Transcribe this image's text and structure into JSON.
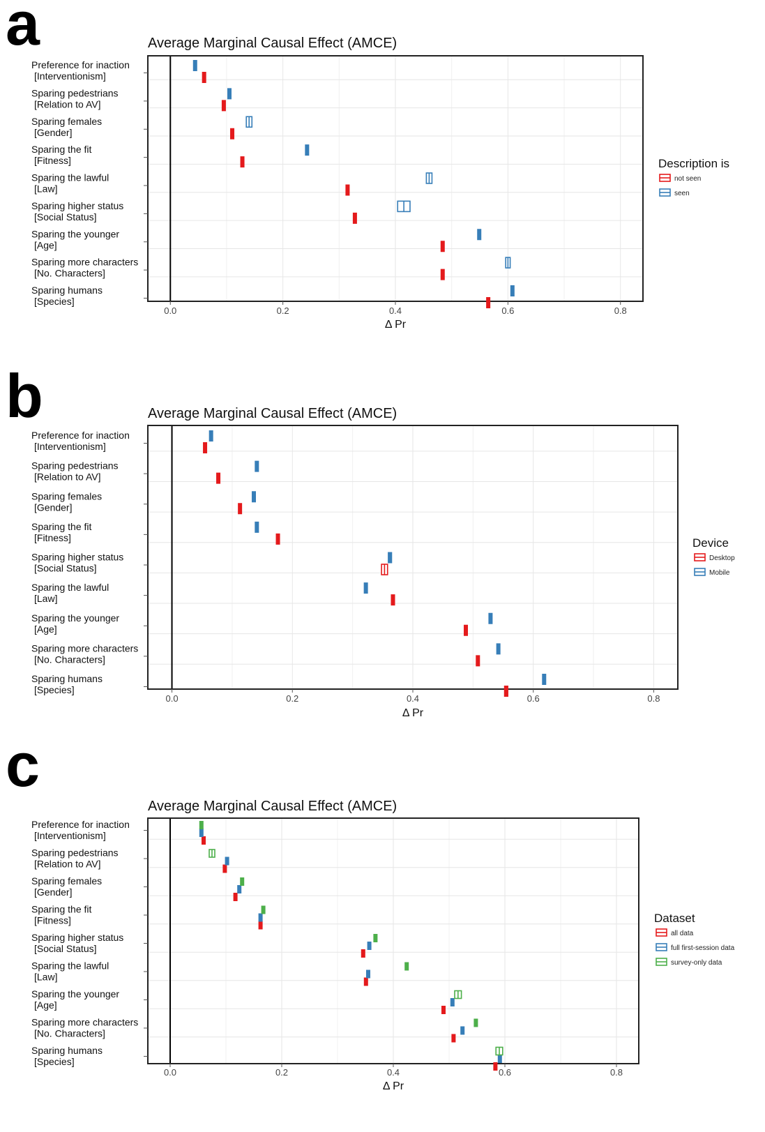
{
  "colors": {
    "red": "#e41a1c",
    "blue": "#377eb8",
    "green": "#4daf4a"
  },
  "row_labels": [
    [
      "Preference for inaction",
      "[Interventionism]"
    ],
    [
      "Sparing pedestrians",
      "[Relation to AV]"
    ],
    [
      "Sparing females",
      "[Gender]"
    ],
    [
      "Sparing the fit",
      "[Fitness]"
    ],
    [
      "Sparing the lawful",
      "[Law]"
    ],
    [
      "Sparing higher status",
      "[Social Status]"
    ],
    [
      "Sparing the younger",
      "[Age]"
    ],
    [
      "Sparing more characters",
      "[No. Characters]"
    ],
    [
      "Sparing humans",
      "[Species]"
    ]
  ],
  "chart_data": [
    {
      "panel": "a",
      "type": "scatter",
      "title": "Average Marginal Causal Effect (AMCE)",
      "xlabel": "Δ Pr",
      "xlim": [
        -0.04,
        0.84
      ],
      "xticks": [
        "0.0",
        "0.2",
        "0.4",
        "0.6",
        "0.8"
      ],
      "grid": true,
      "legend_title": "Description is",
      "categories": [
        "Preference for inaction [Interventionism]",
        "Sparing pedestrians [Relation to AV]",
        "Sparing females [Gender]",
        "Sparing the fit [Fitness]",
        "Sparing the lawful [Law]",
        "Sparing higher status [Social Status]",
        "Sparing the younger [Age]",
        "Sparing more characters [No. Characters]",
        "Sparing humans [Species]"
      ],
      "series": [
        {
          "name": "not seen",
          "color": "#e41a1c",
          "values": [
            0.06,
            0.095,
            0.11,
            0.128,
            0.315,
            0.328,
            0.484,
            0.484,
            0.565
          ],
          "ci": [
            0.002,
            0.002,
            0.002,
            0.002,
            0.002,
            0.002,
            0.002,
            0.002,
            0.002
          ]
        },
        {
          "name": "seen",
          "color": "#377eb8",
          "values": [
            0.044,
            0.105,
            0.14,
            0.243,
            0.46,
            0.415,
            0.549,
            0.6,
            0.608
          ],
          "ci": [
            0.002,
            0.002,
            0.005,
            0.002,
            0.005,
            0.011,
            0.002,
            0.004,
            0.003
          ]
        }
      ]
    },
    {
      "panel": "b",
      "type": "scatter",
      "title": "Average Marginal Causal Effect (AMCE)",
      "xlabel": "Δ Pr",
      "xlim": [
        -0.04,
        0.84
      ],
      "xticks": [
        "0.0",
        "0.2",
        "0.4",
        "0.6",
        "0.8"
      ],
      "grid": true,
      "legend_title": "Device",
      "categories": [
        "Preference for inaction [Interventionism]",
        "Sparing pedestrians [Relation to AV]",
        "Sparing females [Gender]",
        "Sparing the fit [Fitness]",
        "Sparing higher status [Social Status]",
        "Sparing the lawful [Law]",
        "Sparing the younger [Age]",
        "Sparing more characters [No. Characters]",
        "Sparing humans [Species]"
      ],
      "series": [
        {
          "name": "Desktop",
          "color": "#e41a1c",
          "values": [
            0.055,
            0.077,
            0.113,
            0.176,
            0.353,
            0.367,
            0.488,
            0.508,
            0.555
          ],
          "ci": [
            0.002,
            0.002,
            0.002,
            0.002,
            0.005,
            0.002,
            0.002,
            0.002,
            0.003
          ]
        },
        {
          "name": "Mobile",
          "color": "#377eb8",
          "values": [
            0.065,
            0.141,
            0.136,
            0.141,
            0.362,
            0.322,
            0.529,
            0.542,
            0.618
          ],
          "ci": [
            0.002,
            0.002,
            0.002,
            0.002,
            0.003,
            0.002,
            0.002,
            0.002,
            0.002
          ]
        }
      ]
    },
    {
      "panel": "c",
      "type": "scatter",
      "title": "Average Marginal Causal Effect (AMCE)",
      "xlabel": "Δ Pr",
      "xlim": [
        -0.04,
        0.84
      ],
      "xticks": [
        "0.0",
        "0.2",
        "0.4",
        "0.6",
        "0.8"
      ],
      "grid": true,
      "legend_title": "Dataset",
      "categories": [
        "Preference for inaction [Interventionism]",
        "Sparing pedestrians [Relation to AV]",
        "Sparing females [Gender]",
        "Sparing the fit [Fitness]",
        "Sparing higher status [Social Status]",
        "Sparing the lawful [Law]",
        "Sparing the younger [Age]",
        "Sparing more characters [No. Characters]",
        "Sparing humans [Species]"
      ],
      "series": [
        {
          "name": "all data",
          "color": "#e41a1c",
          "values": [
            0.06,
            0.098,
            0.117,
            0.162,
            0.346,
            0.351,
            0.49,
            0.508,
            0.583
          ],
          "ci": [
            0.001,
            0.001,
            0.001,
            0.001,
            0.002,
            0.001,
            0.001,
            0.001,
            0.001
          ]
        },
        {
          "name": "full first-session data",
          "color": "#377eb8",
          "values": [
            0.056,
            0.102,
            0.124,
            0.162,
            0.357,
            0.355,
            0.506,
            0.524,
            0.591
          ],
          "ci": [
            0.001,
            0.001,
            0.001,
            0.001,
            0.001,
            0.001,
            0.001,
            0.001,
            0.001
          ]
        },
        {
          "name": "survey-only data",
          "color": "#4daf4a",
          "values": [
            0.056,
            0.075,
            0.129,
            0.167,
            0.368,
            0.424,
            0.516,
            0.548,
            0.59
          ],
          "ci": [
            0.001,
            0.005,
            0.002,
            0.002,
            0.002,
            0.002,
            0.006,
            0.002,
            0.006
          ]
        }
      ]
    }
  ]
}
